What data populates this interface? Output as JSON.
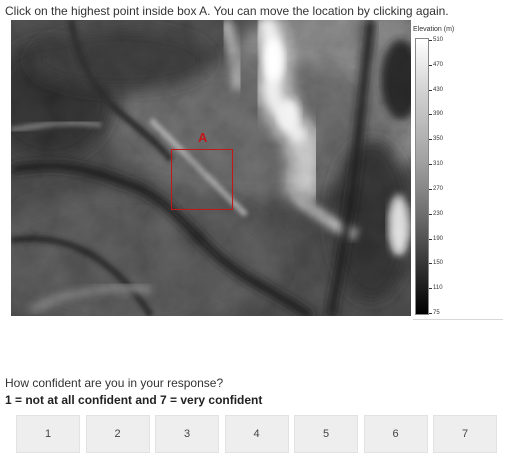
{
  "instruction": "Click on the highest point inside box A. You can move the location by clicking again.",
  "map": {
    "box_label": "A",
    "box_color": "#c41818"
  },
  "legend": {
    "title": "Elevation (m)",
    "ticks": [
      "510",
      "470",
      "430",
      "390",
      "350",
      "310",
      "270",
      "230",
      "190",
      "150",
      "110",
      "75"
    ]
  },
  "question": {
    "prompt": "How confident are you in your response?",
    "scale_note": "1 = not at all confident and 7 = very confident",
    "options": [
      "1",
      "2",
      "3",
      "4",
      "5",
      "6",
      "7"
    ]
  }
}
